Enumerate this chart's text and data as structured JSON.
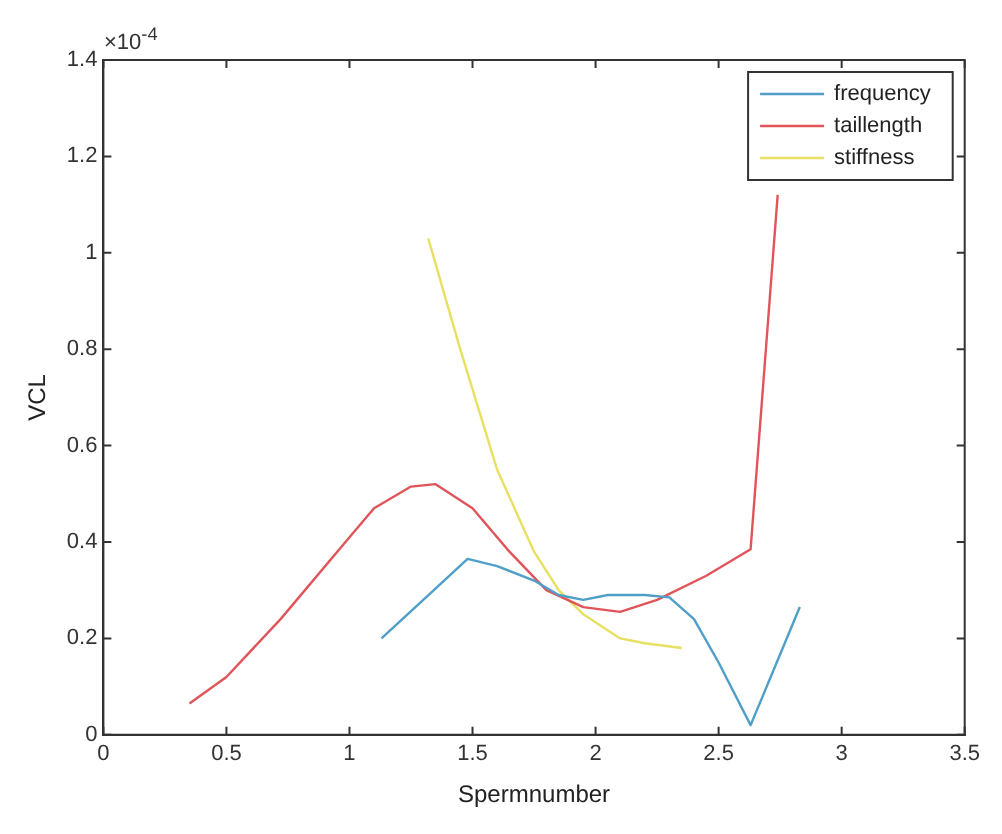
{
  "chart_data": {
    "type": "line",
    "xlabel": "Spermnumber",
    "ylabel": "VCL",
    "annotations": [
      "×10$^{-4}$"
    ],
    "xlim": [
      0,
      3.5
    ],
    "xticks": [
      0,
      0.5,
      1,
      1.5,
      2,
      2.5,
      3,
      3.5
    ],
    "ylim": [
      0,
      1.4
    ],
    "yticks": [
      0,
      0.2,
      0.4,
      0.6,
      0.8,
      1,
      1.2,
      1.4
    ],
    "legend": "top right",
    "grid": false,
    "marker": "none",
    "line_style": "solid",
    "series": [
      {
        "name": "frequency",
        "color": "#4f9fc8",
        "x": [
          1.13,
          1.3,
          1.48,
          1.6,
          1.75,
          1.85,
          1.95,
          2.05,
          2.2,
          2.3,
          2.4,
          2.5,
          2.63,
          2.83
        ],
        "values": [
          0.2,
          0.28,
          0.365,
          0.35,
          0.32,
          0.29,
          0.28,
          0.29,
          0.29,
          0.285,
          0.24,
          0.15,
          0.02,
          0.265
        ]
      },
      {
        "name": "taillength",
        "color": "#e0555a",
        "x": [
          0.35,
          0.5,
          0.72,
          1.0,
          1.1,
          1.25,
          1.35,
          1.5,
          1.65,
          1.8,
          1.95,
          2.1,
          2.25,
          2.45,
          2.63,
          2.74
        ],
        "values": [
          0.065,
          0.12,
          0.24,
          0.41,
          0.47,
          0.515,
          0.52,
          0.47,
          0.38,
          0.3,
          0.265,
          0.255,
          0.28,
          0.33,
          0.385,
          1.12
        ]
      },
      {
        "name": "stiffness",
        "color": "#e8e060",
        "x": [
          1.32,
          1.45,
          1.6,
          1.75,
          1.85,
          1.95,
          2.1,
          2.2,
          2.35
        ],
        "values": [
          1.03,
          0.8,
          0.55,
          0.38,
          0.3,
          0.25,
          0.2,
          0.19,
          0.18
        ]
      }
    ]
  }
}
